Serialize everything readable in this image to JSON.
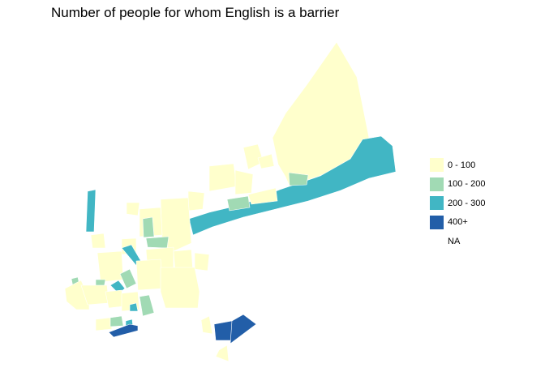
{
  "title": "Number of people for whom English is a barrier",
  "legend": [
    {
      "label": "0 - 100",
      "color": "#ffffcc"
    },
    {
      "label": "100 - 200",
      "color": "#a1dab4"
    },
    {
      "label": "200 - 300",
      "color": "#41b6c4"
    },
    {
      "label": "400+",
      "color": "#225ea8"
    },
    {
      "label": "NA",
      "color": "#ffffff"
    }
  ]
}
